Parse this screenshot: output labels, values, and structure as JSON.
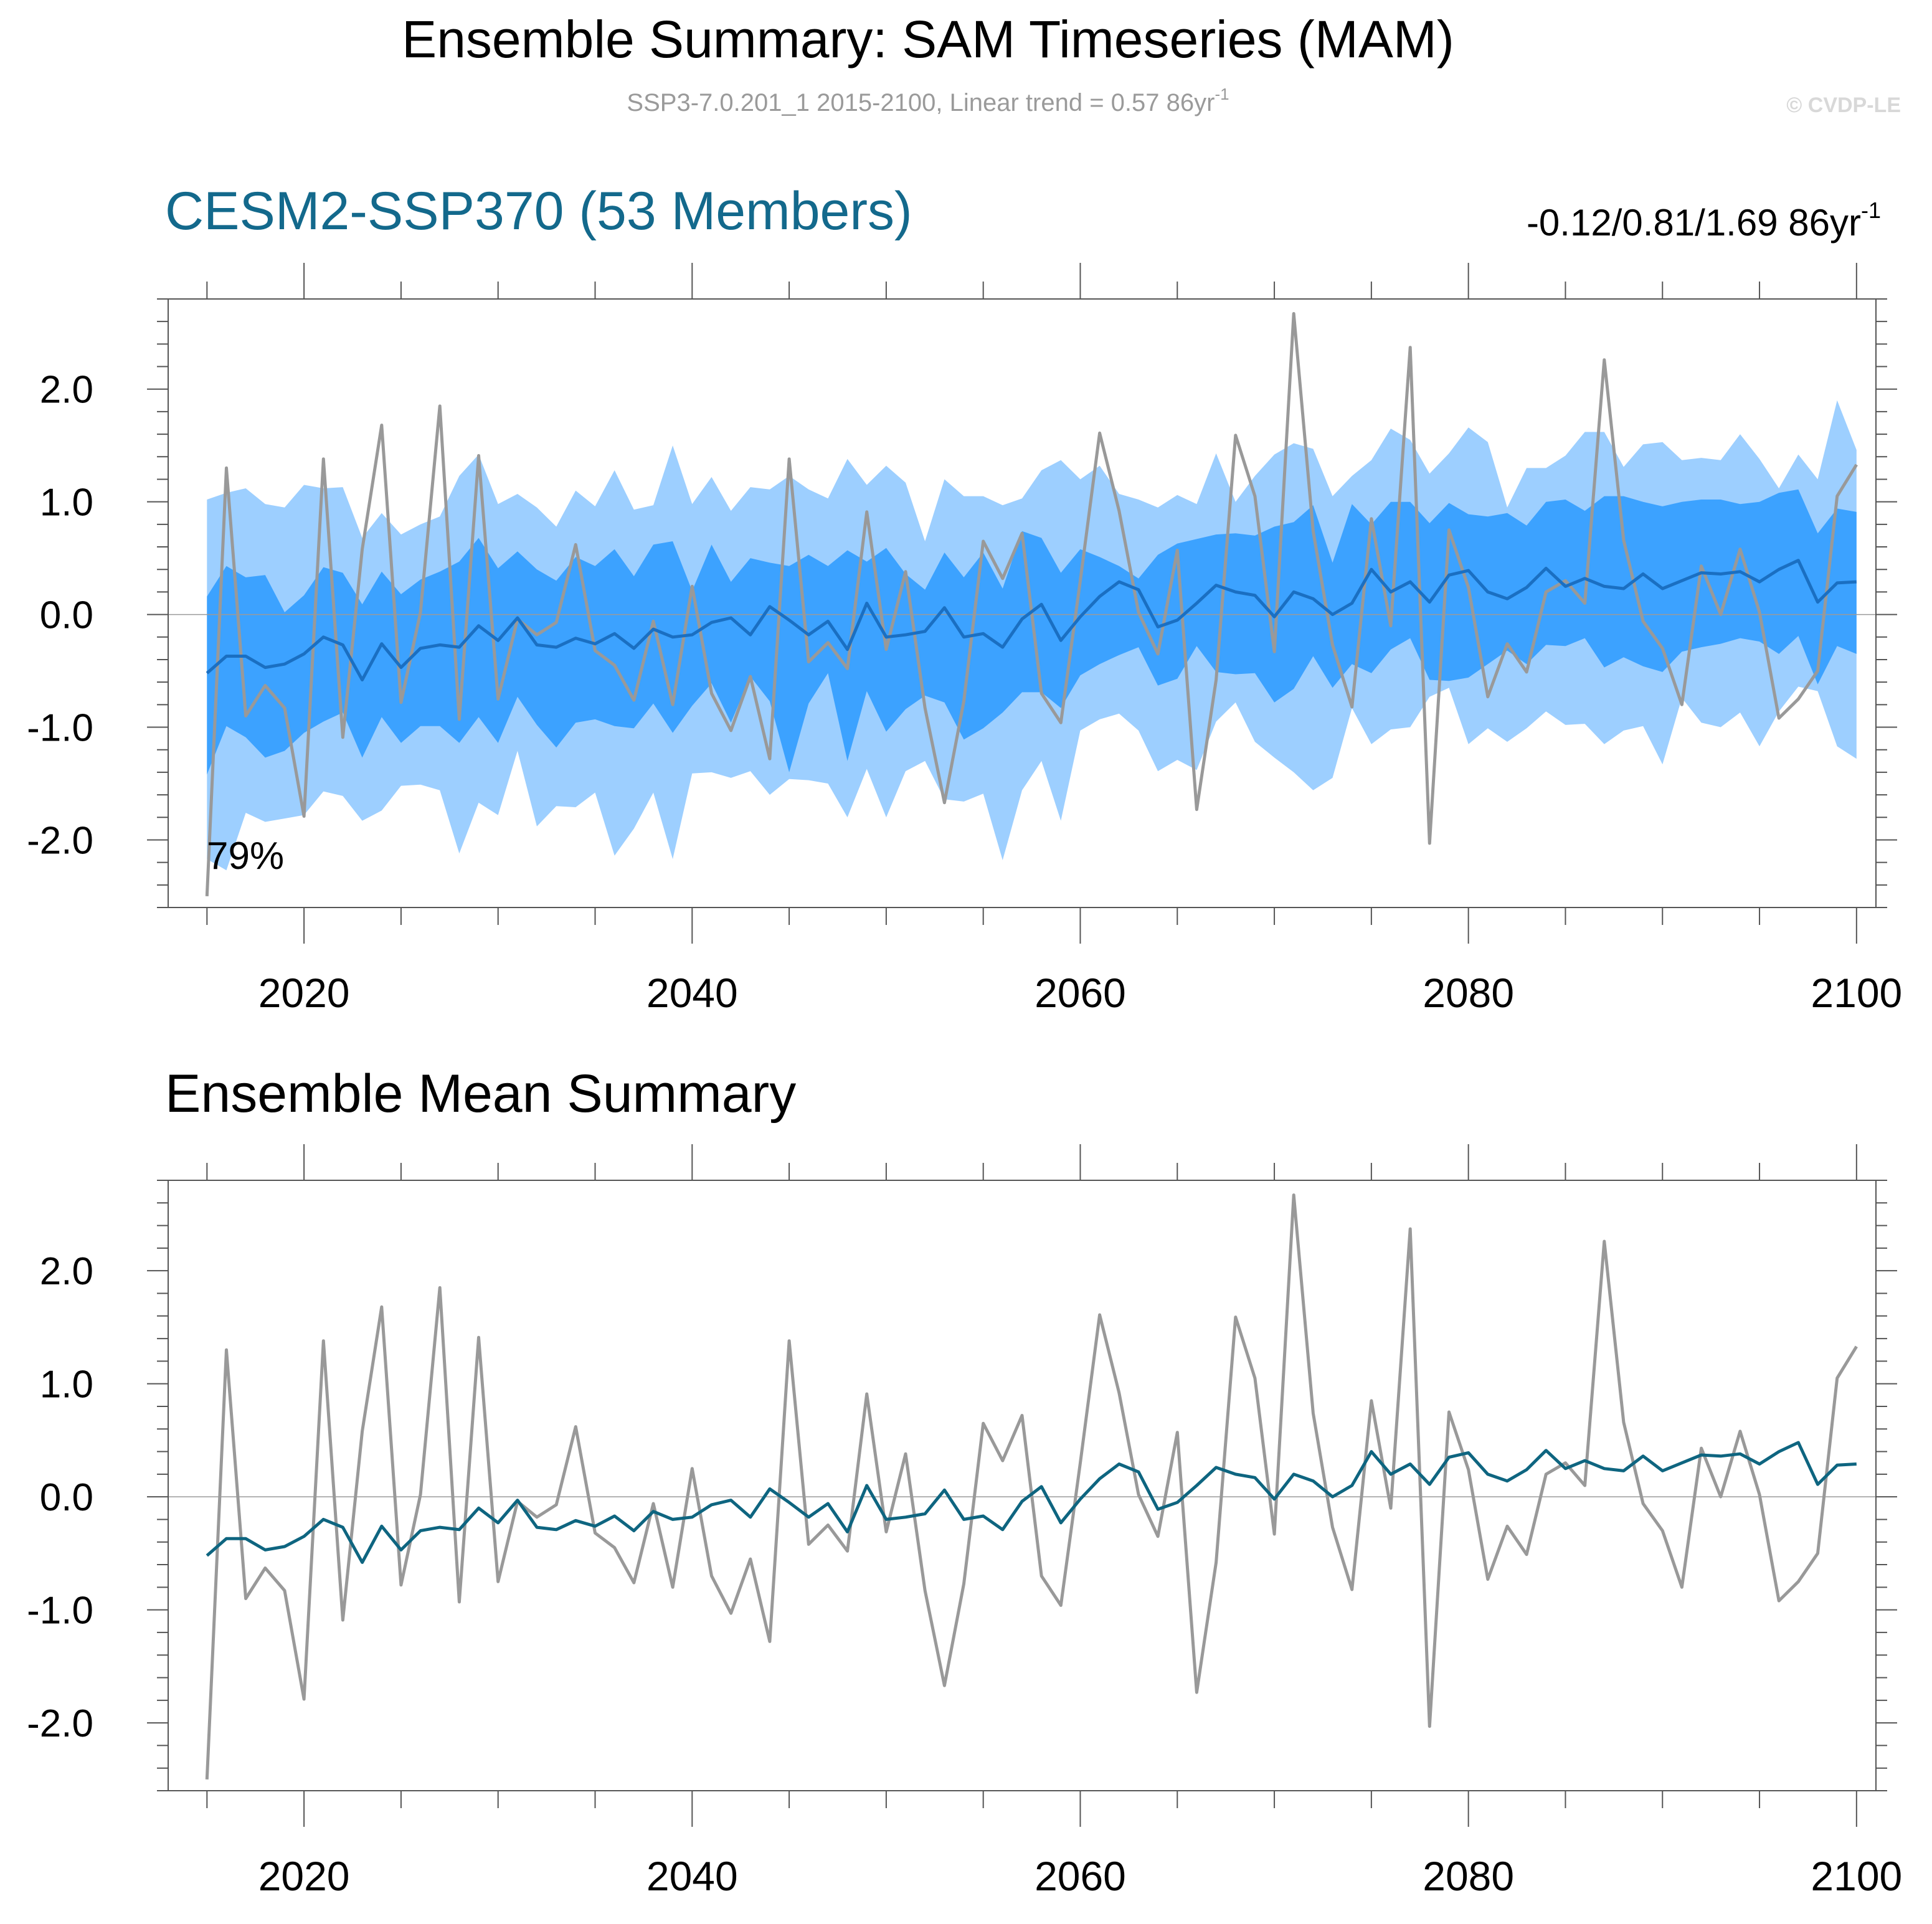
{
  "header": {
    "title": "Ensemble Summary: SAM Timeseries (MAM)",
    "subtitle": "SSP3-7.0.201_1 2015-2100, Linear trend = 0.57 86yr",
    "subtitle_sup": "-1",
    "watermark": "© CVDP-LE"
  },
  "chart_data": [
    {
      "type": "line",
      "panel": "ensemble",
      "title": "CESM2-SSP370 (53 Members)",
      "trend_label": "-0.12/0.81/1.69 86yr",
      "trend_sup": "-1",
      "annotation": "79%",
      "xlim": [
        2013,
        2101
      ],
      "ylim": [
        -2.6,
        2.8
      ],
      "x_ticks": [
        2020,
        2040,
        2060,
        2080,
        2100
      ],
      "y_ticks": [
        2.0,
        1.0,
        0.0,
        -1.0,
        -2.0
      ],
      "y_tick_labels": [
        "2.0",
        "1.0",
        "0.0",
        "-1.0",
        "-2.0"
      ],
      "colors": {
        "outer_band": "#9dcfff",
        "inner_band": "#3ca2ff",
        "ensemble_mean": "#1a6fc2",
        "observed": "#999999"
      },
      "x": [
        2015,
        2016,
        2017,
        2018,
        2019,
        2020,
        2021,
        2022,
        2023,
        2024,
        2025,
        2026,
        2027,
        2028,
        2029,
        2030,
        2031,
        2032,
        2033,
        2034,
        2035,
        2036,
        2037,
        2038,
        2039,
        2040,
        2041,
        2042,
        2043,
        2044,
        2045,
        2046,
        2047,
        2048,
        2049,
        2050,
        2051,
        2052,
        2053,
        2054,
        2055,
        2056,
        2057,
        2058,
        2059,
        2060,
        2061,
        2062,
        2063,
        2064,
        2065,
        2066,
        2067,
        2068,
        2069,
        2070,
        2071,
        2072,
        2073,
        2074,
        2075,
        2076,
        2077,
        2078,
        2079,
        2080,
        2081,
        2082,
        2083,
        2084,
        2085,
        2086,
        2087,
        2088,
        2089,
        2090,
        2091,
        2092,
        2093,
        2094,
        2095,
        2096,
        2097,
        2098,
        2099,
        2100
      ],
      "series": [
        {
          "name": "",
          "values": [
            -2.5,
            1.3,
            -0.9,
            -0.63,
            -0.83,
            -1.79,
            1.38,
            -1.09,
            0.58,
            1.68,
            -0.78,
            0.02,
            1.85,
            -0.93,
            1.41,
            -0.75,
            -0.04,
            -0.18,
            -0.07,
            0.62,
            -0.32,
            -0.45,
            -0.76,
            -0.06,
            -0.8,
            0.25,
            -0.7,
            -1.03,
            -0.55,
            -1.28,
            1.38,
            -0.42,
            -0.25,
            -0.48,
            0.91,
            -0.31,
            0.38,
            -0.83,
            -1.67,
            -0.77,
            0.65,
            0.32,
            0.72,
            -0.7,
            -0.96,
            0.3,
            1.61,
            0.92,
            0.02,
            -0.35,
            0.57,
            -1.73,
            -0.58,
            1.59,
            1.05,
            -0.33,
            2.67,
            0.74,
            -0.27,
            -0.82,
            0.85,
            -0.1,
            2.37,
            -2.03,
            0.75,
            0.24,
            -0.73,
            -0.26,
            -0.51,
            0.2,
            0.3,
            0.1,
            2.26,
            0.66,
            -0.06,
            -0.3,
            -0.8,
            0.43,
            0.0,
            0.58,
            0.02,
            -0.92,
            -0.75,
            -0.5,
            1.05,
            1.33
          ]
        },
        {
          "name": "",
          "values": [
            -0.52,
            -0.37,
            -0.37,
            -0.47,
            -0.44,
            -0.35,
            -0.2,
            -0.27,
            -0.58,
            -0.26,
            -0.47,
            -0.3,
            -0.27,
            -0.29,
            -0.1,
            -0.23,
            -0.03,
            -0.27,
            -0.29,
            -0.21,
            -0.26,
            -0.17,
            -0.3,
            -0.13,
            -0.2,
            -0.18,
            -0.07,
            -0.03,
            -0.18,
            0.07,
            -0.05,
            -0.18,
            -0.06,
            -0.31,
            0.1,
            -0.2,
            -0.18,
            -0.15,
            0.06,
            -0.2,
            -0.17,
            -0.29,
            -0.04,
            0.09,
            -0.23,
            -0.02,
            0.16,
            0.29,
            0.22,
            -0.11,
            -0.05,
            0.1,
            0.26,
            0.2,
            0.17,
            -0.02,
            0.2,
            0.14,
            0.0,
            0.1,
            0.4,
            0.2,
            0.29,
            0.11,
            0.35,
            0.39,
            0.2,
            0.14,
            0.24,
            0.41,
            0.25,
            0.32,
            0.25,
            0.23,
            0.36,
            0.23,
            0.3,
            0.37,
            0.36,
            0.38,
            0.29,
            0.4,
            0.48,
            0.11,
            0.28,
            0.29
          ]
        }
      ],
      "bands": [
        {
          "kind": "outer",
          "upper": [
            1.02,
            1.08,
            1.12,
            0.98,
            0.95,
            1.15,
            1.12,
            1.13,
            0.68,
            0.9,
            0.71,
            0.8,
            0.87,
            1.23,
            1.42,
            0.98,
            1.07,
            0.95,
            0.78,
            1.1,
            0.96,
            1.28,
            0.93,
            0.97,
            1.5,
            0.98,
            1.22,
            0.92,
            1.13,
            1.11,
            1.23,
            1.11,
            1.03,
            1.38,
            1.15,
            1.32,
            1.17,
            0.65,
            1.2,
            1.05,
            1.05,
            0.97,
            1.03,
            1.28,
            1.37,
            1.2,
            1.32,
            1.07,
            1.02,
            0.95,
            1.06,
            0.98,
            1.43,
            1.0,
            1.23,
            1.42,
            1.52,
            1.47,
            1.05,
            1.23,
            1.37,
            1.65,
            1.55,
            1.25,
            1.43,
            1.66,
            1.53,
            0.95,
            1.3,
            1.3,
            1.41,
            1.62,
            1.62,
            1.31,
            1.51,
            1.53,
            1.37,
            1.39,
            1.37,
            1.6,
            1.38,
            1.12,
            1.42,
            1.2,
            1.9,
            1.46
          ],
          "lower": [
            -2.17,
            -2.27,
            -1.76,
            -1.84,
            -1.81,
            -1.78,
            -1.57,
            -1.61,
            -1.83,
            -1.74,
            -1.52,
            -1.51,
            -1.56,
            -2.12,
            -1.67,
            -1.78,
            -1.21,
            -1.88,
            -1.7,
            -1.71,
            -1.58,
            -2.14,
            -1.9,
            -1.58,
            -2.17,
            -1.41,
            -1.4,
            -1.45,
            -1.39,
            -1.6,
            -1.46,
            -1.47,
            -1.5,
            -1.8,
            -1.37,
            -1.8,
            -1.39,
            -1.3,
            -1.64,
            -1.66,
            -1.59,
            -2.18,
            -1.56,
            -1.3,
            -1.83,
            -1.03,
            -0.93,
            -0.88,
            -1.03,
            -1.39,
            -1.29,
            -1.38,
            -0.95,
            -0.78,
            -1.13,
            -1.27,
            -1.4,
            -1.56,
            -1.45,
            -0.83,
            -1.15,
            -1.02,
            -1.0,
            -0.73,
            -0.65,
            -1.15,
            -1.01,
            -1.13,
            -1.01,
            -0.86,
            -0.98,
            -0.97,
            -1.15,
            -1.03,
            -0.99,
            -1.33,
            -0.74,
            -0.96,
            -1.0,
            -0.87,
            -1.17,
            -0.86,
            -0.64,
            -0.68,
            -1.17,
            -1.28
          ]
        },
        {
          "kind": "inner",
          "upper": [
            0.16,
            0.43,
            0.33,
            0.35,
            0.02,
            0.17,
            0.42,
            0.37,
            0.09,
            0.38,
            0.18,
            0.31,
            0.38,
            0.47,
            0.68,
            0.41,
            0.56,
            0.4,
            0.3,
            0.51,
            0.43,
            0.58,
            0.34,
            0.62,
            0.65,
            0.21,
            0.62,
            0.29,
            0.5,
            0.46,
            0.43,
            0.53,
            0.43,
            0.57,
            0.47,
            0.59,
            0.36,
            0.22,
            0.55,
            0.33,
            0.55,
            0.23,
            0.74,
            0.68,
            0.37,
            0.58,
            0.51,
            0.43,
            0.32,
            0.53,
            0.63,
            0.67,
            0.71,
            0.72,
            0.7,
            0.78,
            0.82,
            0.97,
            0.46,
            0.98,
            0.8,
            1.0,
            1.0,
            0.81,
            0.99,
            0.89,
            0.87,
            0.9,
            0.79,
            1.0,
            1.02,
            0.92,
            1.05,
            1.05,
            1.0,
            0.96,
            1.0,
            1.02,
            1.02,
            0.98,
            1.0,
            1.08,
            1.11,
            0.72,
            0.94,
            0.91
          ],
          "lower": [
            -1.42,
            -0.99,
            -1.09,
            -1.27,
            -1.21,
            -1.05,
            -0.95,
            -0.87,
            -1.27,
            -0.91,
            -1.14,
            -0.99,
            -0.99,
            -1.14,
            -0.91,
            -1.14,
            -0.73,
            -0.98,
            -1.18,
            -0.96,
            -0.93,
            -0.99,
            -1.01,
            -0.79,
            -1.05,
            -0.81,
            -0.61,
            -0.96,
            -0.55,
            -0.77,
            -1.4,
            -0.79,
            -0.52,
            -1.3,
            -0.68,
            -1.04,
            -0.84,
            -0.72,
            -0.78,
            -1.11,
            -1.01,
            -0.87,
            -0.69,
            -0.69,
            -0.83,
            -0.54,
            -0.44,
            -0.36,
            -0.29,
            -0.63,
            -0.57,
            -0.28,
            -0.51,
            -0.53,
            -0.52,
            -0.78,
            -0.66,
            -0.37,
            -0.65,
            -0.44,
            -0.52,
            -0.31,
            -0.21,
            -0.58,
            -0.59,
            -0.56,
            -0.44,
            -0.32,
            -0.44,
            -0.27,
            -0.28,
            -0.21,
            -0.47,
            -0.38,
            -0.46,
            -0.51,
            -0.33,
            -0.29,
            -0.26,
            -0.21,
            -0.24,
            -0.35,
            -0.19,
            -0.62,
            -0.28,
            -0.35
          ]
        }
      ]
    },
    {
      "type": "line",
      "panel": "mean",
      "title": "Ensemble Mean Summary",
      "xlim": [
        2013,
        2101
      ],
      "ylim": [
        -2.6,
        2.8
      ],
      "x_ticks": [
        2020,
        2040,
        2060,
        2080,
        2100
      ],
      "y_ticks": [
        2.0,
        1.0,
        0.0,
        -1.0,
        -2.0
      ],
      "y_tick_labels": [
        "2.0",
        "1.0",
        "0.0",
        "-1.0",
        "-2.0"
      ],
      "colors": {
        "ensemble_mean": "#0e6580",
        "observed": "#999999"
      },
      "x": [
        2015,
        2016,
        2017,
        2018,
        2019,
        2020,
        2021,
        2022,
        2023,
        2024,
        2025,
        2026,
        2027,
        2028,
        2029,
        2030,
        2031,
        2032,
        2033,
        2034,
        2035,
        2036,
        2037,
        2038,
        2039,
        2040,
        2041,
        2042,
        2043,
        2044,
        2045,
        2046,
        2047,
        2048,
        2049,
        2050,
        2051,
        2052,
        2053,
        2054,
        2055,
        2056,
        2057,
        2058,
        2059,
        2060,
        2061,
        2062,
        2063,
        2064,
        2065,
        2066,
        2067,
        2068,
        2069,
        2070,
        2071,
        2072,
        2073,
        2074,
        2075,
        2076,
        2077,
        2078,
        2079,
        2080,
        2081,
        2082,
        2083,
        2084,
        2085,
        2086,
        2087,
        2088,
        2089,
        2090,
        2091,
        2092,
        2093,
        2094,
        2095,
        2096,
        2097,
        2098,
        2099,
        2100
      ],
      "series": [
        {
          "name": "",
          "values": [
            -2.5,
            1.3,
            -0.9,
            -0.63,
            -0.83,
            -1.79,
            1.38,
            -1.09,
            0.58,
            1.68,
            -0.78,
            0.02,
            1.85,
            -0.93,
            1.41,
            -0.75,
            -0.04,
            -0.18,
            -0.07,
            0.62,
            -0.32,
            -0.45,
            -0.76,
            -0.06,
            -0.8,
            0.25,
            -0.7,
            -1.03,
            -0.55,
            -1.28,
            1.38,
            -0.42,
            -0.25,
            -0.48,
            0.91,
            -0.31,
            0.38,
            -0.83,
            -1.67,
            -0.77,
            0.65,
            0.32,
            0.72,
            -0.7,
            -0.96,
            0.3,
            1.61,
            0.92,
            0.02,
            -0.35,
            0.57,
            -1.73,
            -0.58,
            1.59,
            1.05,
            -0.33,
            2.67,
            0.74,
            -0.27,
            -0.82,
            0.85,
            -0.1,
            2.37,
            -2.03,
            0.75,
            0.24,
            -0.73,
            -0.26,
            -0.51,
            0.2,
            0.3,
            0.1,
            2.26,
            0.66,
            -0.06,
            -0.3,
            -0.8,
            0.43,
            0.0,
            0.58,
            0.02,
            -0.92,
            -0.75,
            -0.5,
            1.05,
            1.33
          ]
        },
        {
          "name": "",
          "values": [
            -0.52,
            -0.37,
            -0.37,
            -0.47,
            -0.44,
            -0.35,
            -0.2,
            -0.27,
            -0.58,
            -0.26,
            -0.47,
            -0.3,
            -0.27,
            -0.29,
            -0.1,
            -0.23,
            -0.03,
            -0.27,
            -0.29,
            -0.21,
            -0.26,
            -0.17,
            -0.3,
            -0.13,
            -0.2,
            -0.18,
            -0.07,
            -0.03,
            -0.18,
            0.07,
            -0.05,
            -0.18,
            -0.06,
            -0.31,
            0.1,
            -0.2,
            -0.18,
            -0.15,
            0.06,
            -0.2,
            -0.17,
            -0.29,
            -0.04,
            0.09,
            -0.23,
            -0.02,
            0.16,
            0.29,
            0.22,
            -0.11,
            -0.05,
            0.1,
            0.26,
            0.2,
            0.17,
            -0.02,
            0.2,
            0.14,
            0.0,
            0.1,
            0.4,
            0.2,
            0.29,
            0.11,
            0.35,
            0.39,
            0.2,
            0.14,
            0.24,
            0.41,
            0.25,
            0.32,
            0.25,
            0.23,
            0.36,
            0.23,
            0.3,
            0.37,
            0.36,
            0.38,
            0.29,
            0.4,
            0.48,
            0.11,
            0.28,
            0.29
          ]
        }
      ]
    }
  ]
}
